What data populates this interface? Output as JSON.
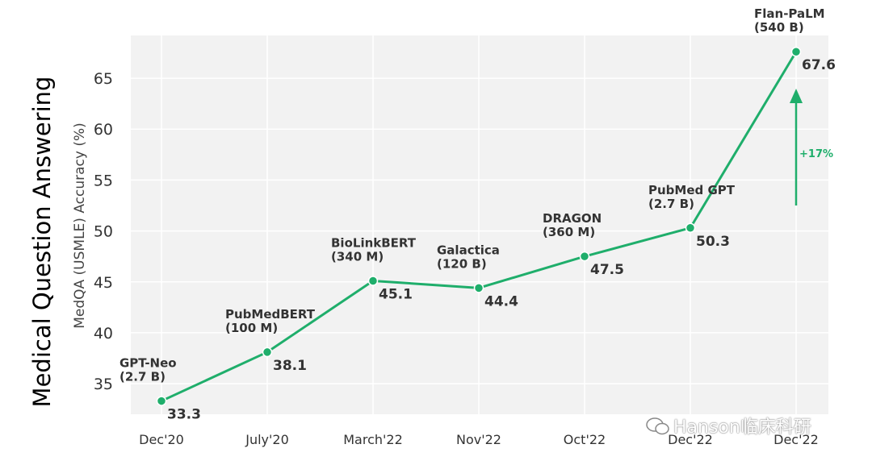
{
  "side_title": "Medical Question Answering",
  "watermark": "Hanson临床科研",
  "colors": {
    "line": "#1fae6b",
    "panel": "#f2f2f2",
    "grid": "#ffffff",
    "text": "#333333"
  },
  "chart_data": {
    "type": "line",
    "ylabel": "MedQA (USMLE) Accuracy (%)",
    "categories": [
      "Dec'20",
      "July'20",
      "March'22",
      "Nov'22",
      "Oct'22",
      "Dec'22",
      "Dec'22"
    ],
    "series": [
      {
        "values": [
          33.3,
          38.1,
          45.1,
          44.4,
          47.5,
          50.3,
          67.6
        ]
      }
    ],
    "value_labels": [
      "33.3",
      "38.1",
      "45.1",
      "44.4",
      "47.5",
      "50.3",
      "67.6"
    ],
    "model_labels": [
      [
        "GPT-Neo",
        "(2.7 B)"
      ],
      [
        "PubMedBERT",
        "(100 M)"
      ],
      [
        "BioLinkBERT",
        "(340 M)"
      ],
      [
        "Galactica",
        "(120 B)"
      ],
      [
        "DRAGON",
        "(360 M)"
      ],
      [
        "PubMed GPT",
        "(2.7 B)"
      ],
      [
        "Flan-PaLM",
        "(540 B)"
      ]
    ],
    "yticks": [
      35,
      40,
      45,
      50,
      55,
      60,
      65
    ],
    "ylim": [
      32,
      69.2
    ],
    "annotation": "+17%",
    "grid": true
  }
}
